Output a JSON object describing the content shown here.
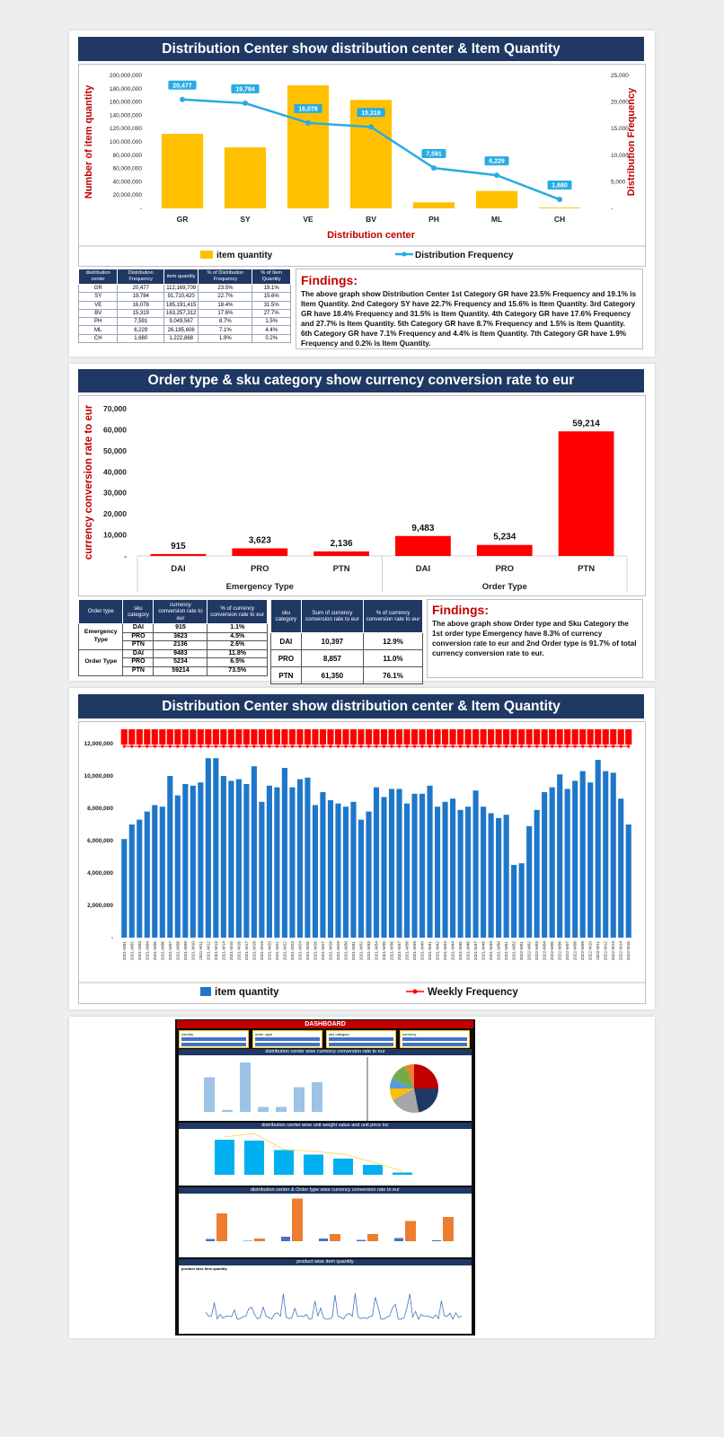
{
  "section1": {
    "title": "Distribution Center show distribution center & Item Quantity",
    "findings_title": "Findings:",
    "findings_text": "The above graph show Distribution Center 1st Category GR have 23.5% Frequency and 19.1% is Item Quantity. 2nd Category SY have 22.7% Frequency and 15.6% is Item Quantity. 3rd Category GR have 18.4% Frequency and 31.5% is Item Quantity. 4th Category GR have 17.6% Frequency and 27.7% is Item Quantity. 5th Category GR have 8.7% Frequency and 1.5% is Item Quantity. 6th Category GR have 7.1% Frequency and 4.4% is Item Quantity. 7th Category GR have 1.9% Frequency and 0.2% is Item Quantity.",
    "table": {
      "headers": [
        "distribution center",
        "Distribution Frequency",
        "item quantity",
        "% of Distribution Frequency",
        "% of Item Quantity"
      ],
      "rows": [
        [
          "GR",
          "20,477",
          "112,169,709",
          "23.5%",
          "19.1%"
        ],
        [
          "SY",
          "19,784",
          "91,710,420",
          "22.7%",
          "15.6%"
        ],
        [
          "VE",
          "16,078",
          "185,191,415",
          "18.4%",
          "31.5%"
        ],
        [
          "BV",
          "15,319",
          "163,257,312",
          "17.6%",
          "27.7%"
        ],
        [
          "PH",
          "7,591",
          "9,049,567",
          "8.7%",
          "1.5%"
        ],
        [
          "ML",
          "6,229",
          "26,185,606",
          "7.1%",
          "4.4%"
        ],
        [
          "CH",
          "1,680",
          "1,222,868",
          "1.9%",
          "0.2%"
        ]
      ]
    }
  },
  "section2": {
    "title": "Order type & sku category show currency conversion rate to eur",
    "findings_title": "Findings:",
    "findings_text": "The above graph show Order type and Sku Category the 1st order type Emergency have 8.3% of currency conversion rate to eur and 2nd Order type is 91.7% of total currency conversion rate to eur.",
    "table_a": {
      "headers": [
        "Order type",
        "sku category",
        "currency conversion rate to eur",
        "% of currency conversion rate to eur"
      ],
      "groups": [
        {
          "type": "Emergency Type",
          "rows": [
            [
              "DAI",
              "915",
              "1.1%"
            ],
            [
              "PRO",
              "3623",
              "4.5%"
            ],
            [
              "PTN",
              "2136",
              "2.6%"
            ]
          ]
        },
        {
          "type": "Order Type",
          "rows": [
            [
              "DAI",
              "9483",
              "11.8%"
            ],
            [
              "PRO",
              "5234",
              "6.5%"
            ],
            [
              "PTN",
              "59214",
              "73.5%"
            ]
          ]
        }
      ]
    },
    "table_b": {
      "headers": [
        "sku category",
        "Sum of currency conversion rate to eur",
        "% of currency conversion rate to eur"
      ],
      "rows": [
        [
          "DAI",
          "10,397",
          "12.9%"
        ],
        [
          "PRO",
          "8,857",
          "11.0%"
        ],
        [
          "PTN",
          "61,350",
          "76.1%"
        ]
      ]
    }
  },
  "section3": {
    "title": "Distribution Center show distribution center & Item Quantity"
  },
  "dashboard": {
    "title": "DASHBOARD",
    "filters": [
      "country",
      "order_type",
      "sku category",
      "currency"
    ],
    "panel1": "distribution center wise currency conversion rate to eur",
    "panel2": "distribution center wise unit weight value and unit price loc",
    "panel3": "distribution center & Order type wise currency conversion rate to eur",
    "panel4": "product wise item quantity",
    "panel4_sub": "product wise item quantity"
  },
  "colors": {
    "navy": "#1f3864",
    "gold": "#ffc000",
    "line_blue": "#29abe2",
    "red": "#ff0000",
    "bar_blue": "#1f77c9",
    "dark_red": "#c00000"
  },
  "chart_data": [
    {
      "type": "bar",
      "title": "",
      "categories": [
        "GR",
        "SY",
        "VE",
        "BV",
        "PH",
        "ML",
        "CH"
      ],
      "xlabel": "Distribution center",
      "ylabel": "Number of item quantity",
      "y2label": "Distribution Frequency",
      "ylim": [
        0,
        200000000
      ],
      "y2lim": [
        0,
        25000
      ],
      "yticks": [
        "-",
        "20,000,000",
        "40,000,000",
        "60,000,000",
        "80,000,000",
        "100,000,000",
        "120,000,000",
        "140,000,000",
        "160,000,000",
        "180,000,000",
        "200,000,000"
      ],
      "y2ticks": [
        "-",
        "5,000",
        "10,000",
        "15,000",
        "20,000",
        "25,000"
      ],
      "series": [
        {
          "name": "item quantity",
          "type": "bar",
          "values": [
            112169709,
            91710420,
            185191415,
            163257312,
            9049567,
            26185606,
            1222868
          ]
        },
        {
          "name": "Distribution Frequency",
          "type": "line",
          "axis": "right",
          "values": [
            20477,
            19784,
            16078,
            15319,
            7591,
            6229,
            1680
          ],
          "labels": [
            "20,477",
            "19,784",
            "16,078",
            "15,319",
            "7,591",
            "6,229",
            "1,680"
          ]
        }
      ],
      "legend": "bottom"
    },
    {
      "type": "bar",
      "title": "",
      "ylabel": "currency conversion rate to eur",
      "ylim": [
        0,
        70000
      ],
      "yticks": [
        "-",
        "10,000",
        "20,000",
        "30,000",
        "40,000",
        "50,000",
        "60,000",
        "70,000"
      ],
      "groups": [
        "Emergency Type",
        "Order Type"
      ],
      "categories": [
        "DAI",
        "PRO",
        "PTN",
        "DAI",
        "PRO",
        "PTN"
      ],
      "values": [
        915,
        3623,
        2136,
        9483,
        5234,
        59214
      ],
      "labels": [
        "915",
        "3,623",
        "2,136",
        "9,483",
        "5,234",
        "59,214"
      ]
    },
    {
      "type": "bar",
      "title": "",
      "ylim": [
        0,
        12000000
      ],
      "yticks": [
        "-",
        "2,000,000",
        "4,000,000",
        "6,000,000",
        "8,000,000",
        "10,000,000",
        "12,000,000"
      ],
      "series": [
        {
          "name": "item quantity",
          "type": "bar"
        },
        {
          "name": "Weekly Frequency",
          "type": "line"
        }
      ],
      "weeks": [
        "2021-W01",
        "2021-W02",
        "2021-W03",
        "2021-W04",
        "2021-W05",
        "2021-W06",
        "2021-W07",
        "2021-W08",
        "2021-W09",
        "2021-W10",
        "2021-W11",
        "2021-W12",
        "2021-W13",
        "2021-W14",
        "2021-W15",
        "2021-W16",
        "2021-W17",
        "2021-W18",
        "2021-W19",
        "2021-W20",
        "2021-W21",
        "2021-W22",
        "2021-W23",
        "2021-W24",
        "2021-W25",
        "2021-W26",
        "2021-W27",
        "2021-W28",
        "2021-W29",
        "2021-W30",
        "2021-W31",
        "2021-W32",
        "2021-W33",
        "2021-W34",
        "2021-W35",
        "2021-W36",
        "2021-W37",
        "2021-W38",
        "2021-W39",
        "2021-W40",
        "2021-W41",
        "2021-W42",
        "2021-W43",
        "2021-W44",
        "2021-W45",
        "2021-W46",
        "2021-W47",
        "2021-W48",
        "2021-W49",
        "2021-W50",
        "2021-W51",
        "2021-W52",
        "2022-W01",
        "2022-W02",
        "2022-W03",
        "2022-W04",
        "2022-W05",
        "2022-W06",
        "2022-W07",
        "2022-W08",
        "2022-W09",
        "2022-W10",
        "2022-W11",
        "2022-W12",
        "2022-W13",
        "2022-W14",
        "2022-W15"
      ],
      "values": [
        6100000,
        7000000,
        7300000,
        7800000,
        8200000,
        8100000,
        10000000,
        8800000,
        9500000,
        9400000,
        9600000,
        11100000,
        11100000,
        10000000,
        9700000,
        9800000,
        9500000,
        10600000,
        8400000,
        9400000,
        9300000,
        10500000,
        9300000,
        9800000,
        9900000,
        8200000,
        9000000,
        8500000,
        8300000,
        8100000,
        8400000,
        7300000,
        7800000,
        9300000,
        8700000,
        9200000,
        9200000,
        8300000,
        8900000,
        8900000,
        9400000,
        8100000,
        8400000,
        8600000,
        7900000,
        8100000,
        9100000,
        8100000,
        7700000,
        7400000,
        7600000,
        4500000,
        4600000,
        6900000,
        7900000,
        9000000,
        9300000,
        10100000,
        9200000,
        9700000,
        10300000,
        9600000,
        11000000,
        10300000,
        10200000,
        8600000,
        7000000
      ]
    }
  ]
}
